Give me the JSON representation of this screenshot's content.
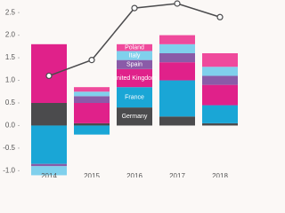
{
  "chart_data": {
    "type": "stacked-bar-line",
    "categories": [
      "2014",
      "2015",
      "2016",
      "2017",
      "2018"
    ],
    "series": [
      {
        "name": "Germany",
        "color": "#4b4b4d",
        "values": [
          0.5,
          0.05,
          0.4,
          0.2,
          0.05
        ]
      },
      {
        "name": "France",
        "color": "#1aa6d6",
        "values": [
          -0.85,
          -0.2,
          0.45,
          0.8,
          0.4
        ]
      },
      {
        "name": "United Kingdom",
        "color": "#e0218a",
        "values": [
          1.3,
          0.45,
          0.4,
          0.4,
          0.45
        ]
      },
      {
        "name": "Spain",
        "color": "#8a5ba8",
        "values": [
          -0.05,
          0.15,
          0.2,
          0.2,
          0.2
        ]
      },
      {
        "name": "Italy",
        "color": "#80d0ec",
        "values": [
          -0.2,
          0.1,
          0.2,
          0.2,
          0.2
        ]
      },
      {
        "name": "Poland",
        "color": "#ef4a9c",
        "values": [
          0,
          0.1,
          0.15,
          0.2,
          0.3
        ]
      }
    ],
    "line": {
      "color": "#4b4b4d",
      "values": [
        1.1,
        1.45,
        2.6,
        2.7,
        2.4
      ]
    },
    "ylim": [
      -1.15,
      2.7
    ],
    "yticks": [
      -1.0,
      -0.5,
      0.0,
      0.5,
      1.0,
      1.5,
      2.0,
      2.5
    ],
    "label_category": 2
  }
}
